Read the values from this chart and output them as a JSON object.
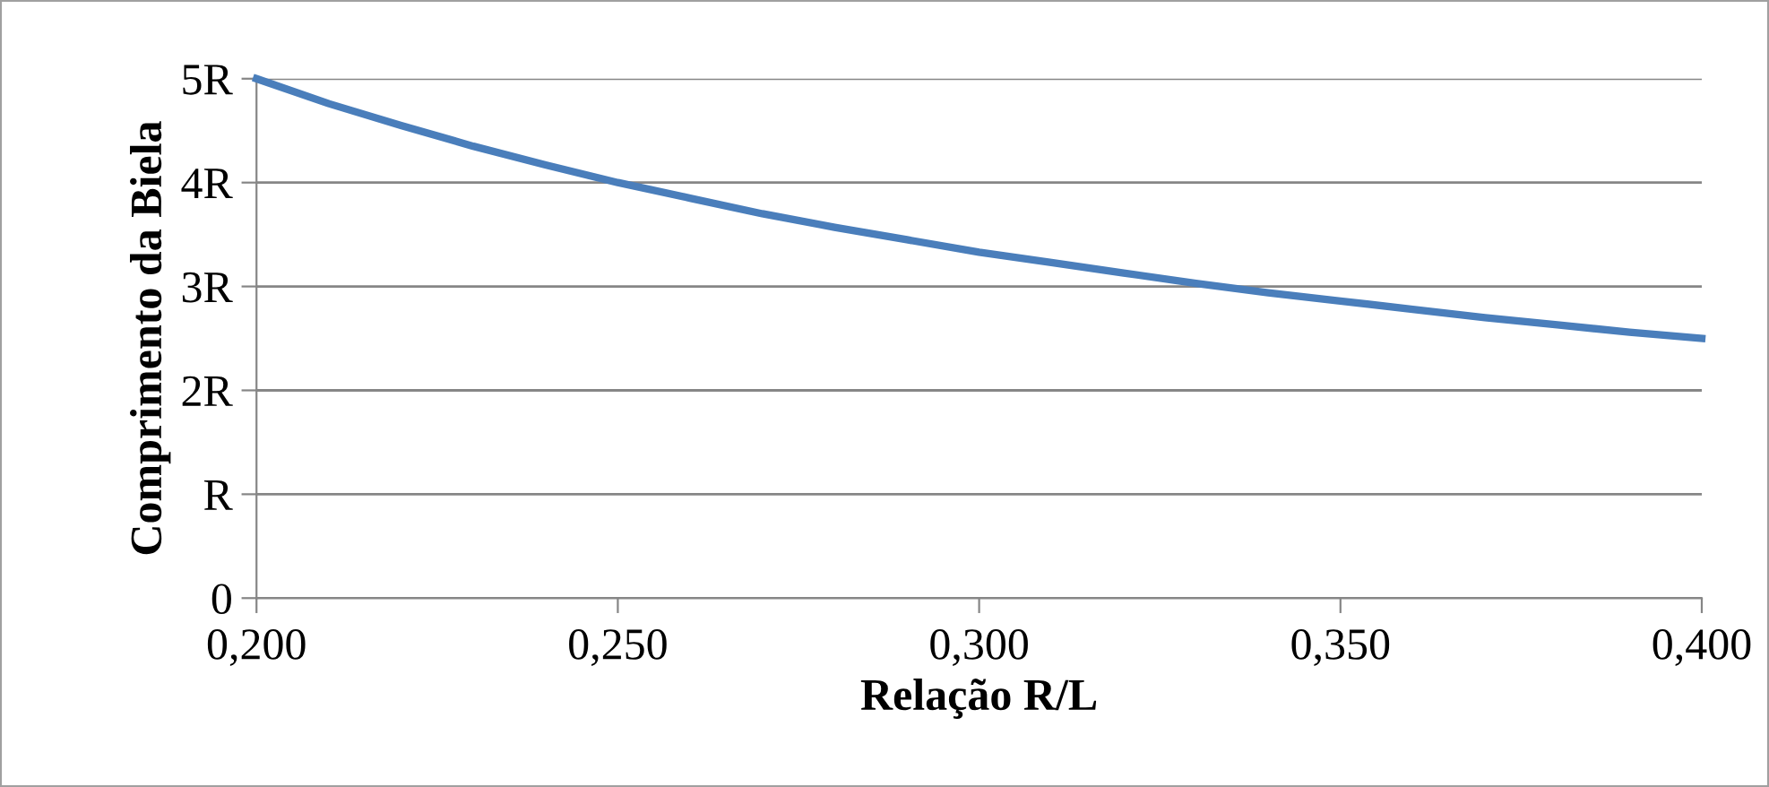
{
  "chart_data": {
    "type": "line",
    "xlabel": "Relação R/L",
    "ylabel": "Comprimento da Biela",
    "x": [
      0.2,
      0.21,
      0.22,
      0.23,
      0.24,
      0.25,
      0.26,
      0.27,
      0.28,
      0.29,
      0.3,
      0.31,
      0.32,
      0.33,
      0.34,
      0.35,
      0.36,
      0.37,
      0.38,
      0.39,
      0.4
    ],
    "series": [
      {
        "color": "#4a7ebb",
        "values": [
          5.0,
          4.76,
          4.55,
          4.35,
          4.17,
          4.0,
          3.85,
          3.7,
          3.57,
          3.45,
          3.33,
          3.23,
          3.13,
          3.03,
          2.94,
          2.86,
          2.78,
          2.7,
          2.63,
          2.56,
          2.5
        ]
      }
    ],
    "xlim": [
      0.2,
      0.4
    ],
    "ylim": [
      0,
      5
    ],
    "xticks": [
      {
        "value": 0.2,
        "label": "0,200"
      },
      {
        "value": 0.25,
        "label": "0,250"
      },
      {
        "value": 0.3,
        "label": "0,300"
      },
      {
        "value": 0.35,
        "label": "0,350"
      },
      {
        "value": 0.4,
        "label": "0,400"
      }
    ],
    "yticks": [
      0,
      {
        "value": 1,
        "label": "R"
      },
      {
        "value": 2,
        "label": "2R"
      },
      {
        "value": 3,
        "label": "3R"
      },
      {
        "value": 4,
        "label": "4R"
      },
      {
        "value": 5,
        "label": "5R"
      }
    ],
    "grid": "y",
    "marker": "none",
    "line_style": "solid"
  }
}
